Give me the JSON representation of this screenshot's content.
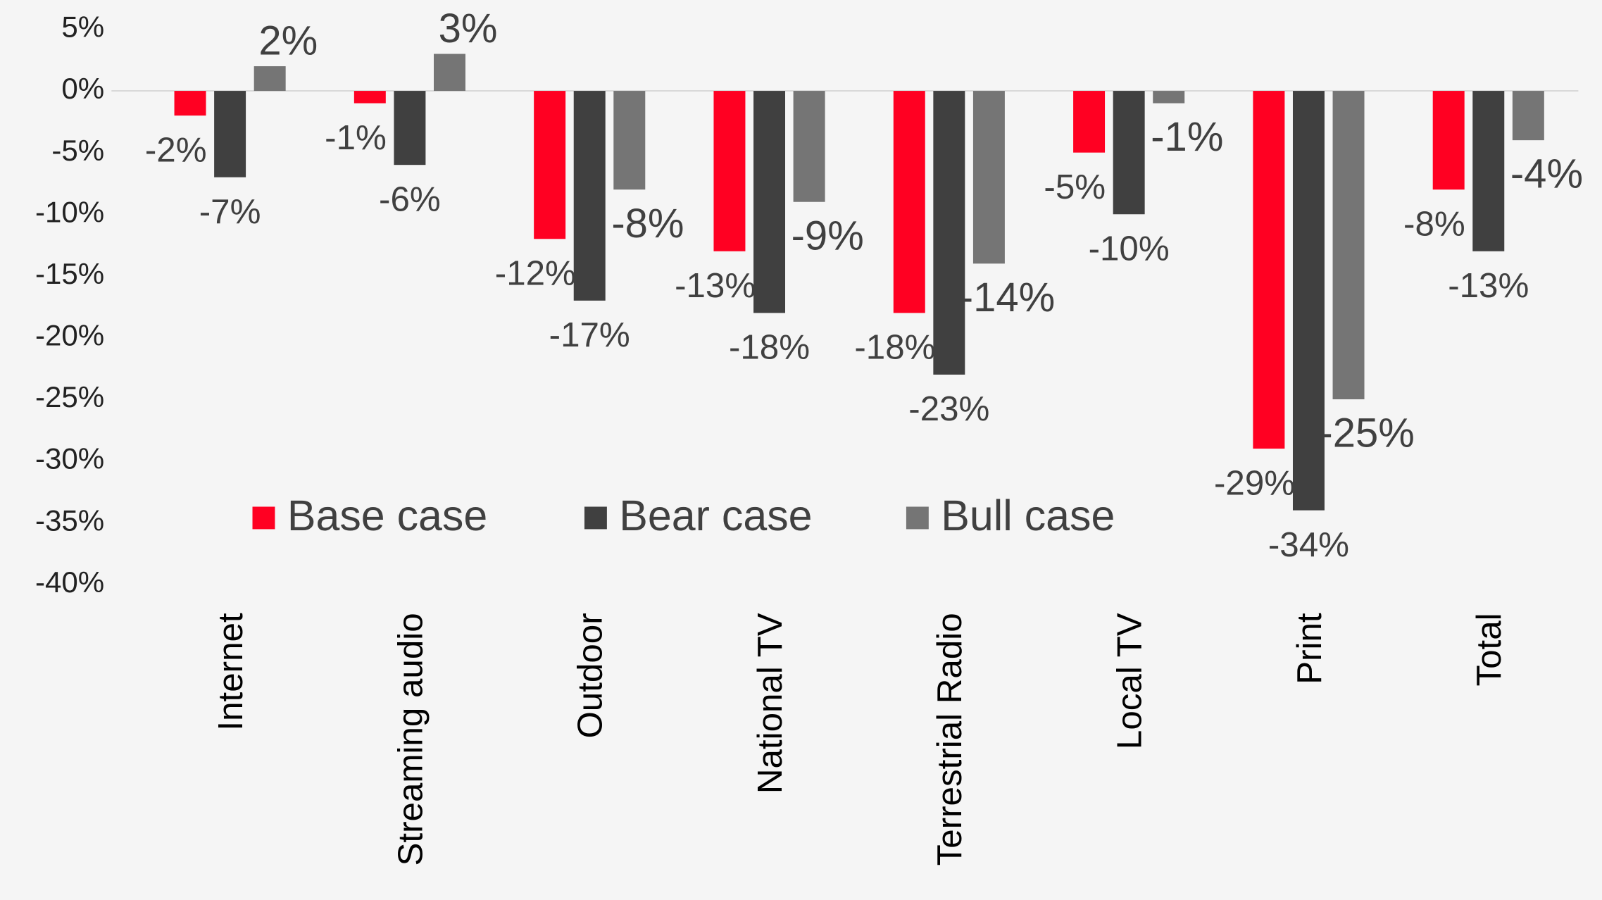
{
  "chart_data": {
    "type": "bar",
    "categories": [
      "Internet",
      "Streaming audio",
      "Outdoor",
      "National TV",
      "Terrestrial Radio",
      "Local TV",
      "Print",
      "Total"
    ],
    "series": [
      {
        "name": "Base case",
        "color": "#ff0022",
        "values": [
          -2,
          -1,
          -12,
          -13,
          -18,
          -5,
          -29,
          -8
        ],
        "value_labels": [
          "-2%",
          "-1%",
          "-12%",
          "-13%",
          "-18%",
          "-5%",
          "-29%",
          "-8%"
        ]
      },
      {
        "name": "Bear case",
        "color": "#404040",
        "values": [
          -7,
          -6,
          -17,
          -18,
          -23,
          -10,
          -34,
          -13
        ],
        "value_labels": [
          "-7%",
          "-6%",
          "-17%",
          "-18%",
          "-23%",
          "-10%",
          "-34%",
          "-13%"
        ]
      },
      {
        "name": "Bull case",
        "color": "#757575",
        "values": [
          2,
          3,
          -8,
          -9,
          -14,
          -1,
          -25,
          -4
        ],
        "value_labels": [
          "2%",
          "3%",
          "-8%",
          "-9%",
          "-14%",
          "-1%",
          "-25%",
          "-4%"
        ]
      }
    ],
    "ylim": [
      -40,
      5
    ],
    "yticks": [
      {
        "value": 5,
        "label": "5%"
      },
      {
        "value": 0,
        "label": "0%"
      },
      {
        "value": -5,
        "label": "-5%"
      },
      {
        "value": -10,
        "label": "-10%"
      },
      {
        "value": -15,
        "label": "-15%"
      },
      {
        "value": -20,
        "label": "-20%"
      },
      {
        "value": -25,
        "label": "-25%"
      },
      {
        "value": -30,
        "label": "-30%"
      },
      {
        "value": -35,
        "label": "-35%"
      },
      {
        "value": -40,
        "label": "-40%"
      }
    ],
    "grid": false,
    "legend": "center"
  }
}
